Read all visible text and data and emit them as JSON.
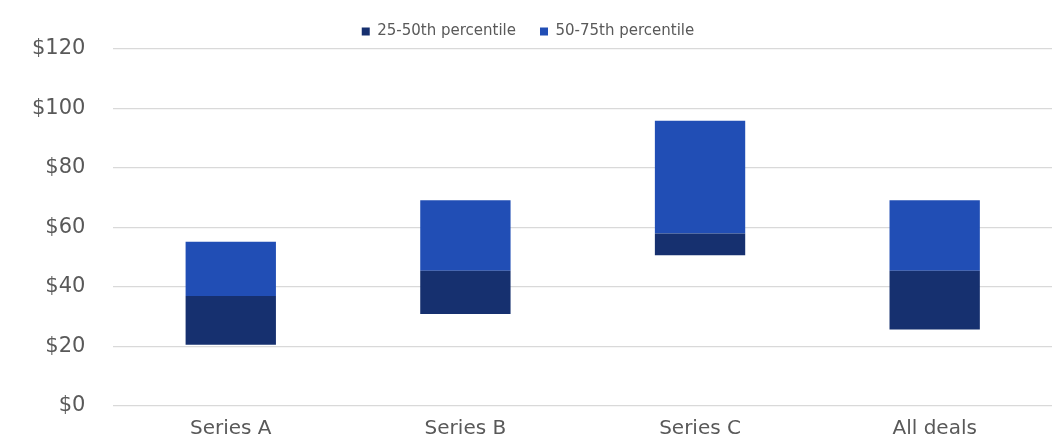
{
  "chart_data": {
    "type": "bar",
    "categories": [
      "Series A",
      "Series B",
      "Series C",
      "All deals"
    ],
    "series": [
      {
        "name": "25-50th percentile",
        "color": "#16306f",
        "base": [
          20.6,
          30.9,
          50.7,
          25.7
        ],
        "values": [
          16.4,
          14.6,
          7.3,
          19.8
        ]
      },
      {
        "name": "50-75th percentile",
        "color": "#214eb5",
        "base": [
          37,
          45.5,
          58,
          45.5
        ],
        "values": [
          18.2,
          23.7,
          37.9,
          23.7
        ]
      }
    ],
    "ylim": [
      0,
      120
    ],
    "yticks": [
      {
        "value": 0,
        "label": "$0"
      },
      {
        "value": 20,
        "label": "$20"
      },
      {
        "value": 40,
        "label": "$40"
      },
      {
        "value": 60,
        "label": "$60"
      },
      {
        "value": 80,
        "label": "$80"
      },
      {
        "value": 100,
        "label": "$100"
      },
      {
        "value": 120,
        "label": "$120"
      }
    ],
    "grid": "y",
    "legend": "top"
  }
}
